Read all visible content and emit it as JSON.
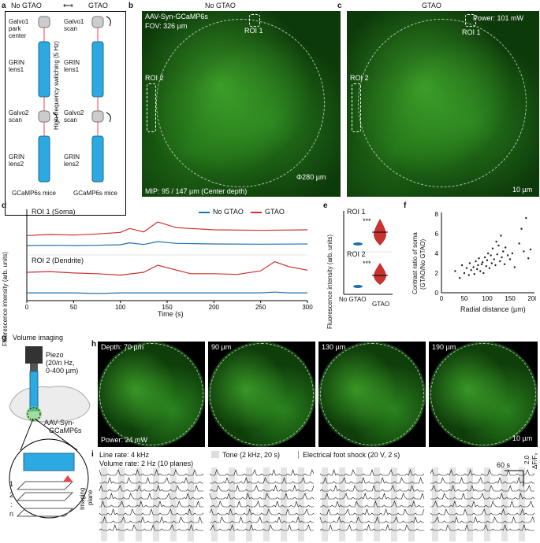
{
  "panels": {
    "a": {
      "label": "a",
      "header_left": "No GTAO",
      "header_right": "GTAO",
      "switch_text": "High frequency switching (5 Hz)",
      "left_col": [
        "Galvo1 park center",
        "GRIN lens1",
        "Galvo2 scan",
        "GRIN lens2",
        "GCaMP6s mice"
      ],
      "right_col": [
        "Galvo1 scan",
        "GRIN lens1",
        "Galvo2 scan",
        "GRIN lens2",
        "GCaMP6s mice"
      ]
    },
    "b": {
      "label": "b",
      "title": "No GTAO",
      "line1": "AAV-Syn-GCaMP6s",
      "line2": "FOV: 326 µm",
      "roi1": "ROI 1",
      "roi2": "ROI 2",
      "diameter": "Φ280 µm",
      "mip": "MIP: 95 / 147 µm (Center depth)"
    },
    "c": {
      "label": "c",
      "title": "GTAO",
      "power": "Power: 101 mW",
      "roi1": "ROI 1",
      "roi2": "ROI 2",
      "scale": "10 µm"
    },
    "d": {
      "label": "d",
      "legend_no": "No GTAO",
      "legend_gtao": "GTAO",
      "roi1_title": "ROI 1 (Soma)",
      "roi2_title": "ROI 2 (Dendrite)",
      "ylabel": "Fluorescence intensity (arb. units)",
      "xlabel": "Time (s)",
      "xticks": [
        "0",
        "50",
        "100",
        "150",
        "200",
        "250",
        "300"
      ],
      "yticks_top": [
        "150",
        "100",
        "50"
      ],
      "yticks_bottom": [
        "60",
        "40",
        "20",
        "0"
      ],
      "colors": {
        "no_gtao": "#1f6fae",
        "gtao": "#c8322f"
      }
    },
    "e": {
      "label": "e",
      "roi1": "ROI 1",
      "roi2": "ROI 2",
      "sig": "***",
      "ylabel": "Fluorescence intensity (arb. units)",
      "xticks": [
        "No GTAO",
        "GTAO"
      ],
      "yticks_top": [
        "100",
        "50",
        "0"
      ],
      "yticks_bottom": [
        "60",
        "40",
        "20",
        "0"
      ]
    },
    "f": {
      "label": "f",
      "ylabel_1": "Contrast ratio of soma",
      "ylabel_2": "(GTAO/No GTAO)",
      "xlabel": "Radial distance (µm)",
      "xticks": [
        "0",
        "50",
        "100",
        "150",
        "200"
      ],
      "yticks": [
        "0",
        "2",
        "4",
        "6",
        "8"
      ]
    },
    "g": {
      "label": "g",
      "title": "Volume imaging",
      "piezo": [
        "Piezo",
        "(20/n Hz,",
        "0-400 µm)"
      ],
      "virus": [
        "AAV-Syn-",
        "GCaMP6s"
      ],
      "planes": [
        "1",
        "2",
        ":",
        "n"
      ],
      "plane_label": [
        "Imaging",
        "plane"
      ]
    },
    "h": {
      "label": "h",
      "planes": [
        "Depth: 70 µm",
        "90 µm",
        "130 µm",
        "190 µm"
      ],
      "power": "Power: 24 mW",
      "scale": "10 µm"
    },
    "i": {
      "label": "i",
      "line_rate": "Line rate: 4 kHz",
      "volume_rate": "Volume rate: 2 Hz (10 planes)",
      "tone": "Tone (2 kHz, 20 s)",
      "shock": "Electrical foot shock (20 V, 2 s)",
      "time_scale": "60 s",
      "df_scale": "2.0",
      "df_label": "ΔF/F₀"
    }
  },
  "chart_data": [
    {
      "type": "line",
      "title": "ROI 1 (Soma)",
      "xlabel": "Time (s)",
      "ylabel": "Fluorescence intensity (arb. units)",
      "xlim": [
        0,
        300
      ],
      "ylim": [
        0,
        150
      ],
      "x": [
        0,
        25,
        50,
        75,
        100,
        110,
        125,
        140,
        160,
        200,
        250,
        300
      ],
      "series": [
        {
          "name": "No GTAO",
          "values": [
            30,
            31,
            30,
            31,
            33,
            40,
            34,
            45,
            38,
            36,
            35,
            36
          ]
        },
        {
          "name": "GTAO",
          "values": [
            68,
            72,
            70,
            74,
            80,
            95,
            82,
            120,
            98,
            90,
            88,
            90
          ]
        }
      ]
    },
    {
      "type": "line",
      "title": "ROI 2 (Dendrite)",
      "xlabel": "Time (s)",
      "ylabel": "Fluorescence intensity (arb. units)",
      "xlim": [
        0,
        300
      ],
      "ylim": [
        0,
        60
      ],
      "x": [
        0,
        25,
        50,
        75,
        100,
        125,
        140,
        175,
        200,
        225,
        250,
        265,
        280,
        300
      ],
      "series": [
        {
          "name": "No GTAO",
          "values": [
            11,
            11,
            11,
            10,
            11,
            11,
            11,
            11,
            11,
            11,
            11,
            12,
            11,
            11
          ]
        },
        {
          "name": "GTAO",
          "values": [
            40,
            41,
            39,
            38,
            36,
            40,
            50,
            38,
            38,
            37,
            42,
            55,
            48,
            43
          ]
        }
      ]
    },
    {
      "type": "scatter",
      "xlabel": "Radial distance (µm)",
      "ylabel": "Contrast ratio of soma (GTAO/No GTAO)",
      "xlim": [
        0,
        200
      ],
      "ylim": [
        0,
        8
      ],
      "x": [
        30,
        40,
        45,
        50,
        55,
        60,
        62,
        65,
        70,
        72,
        75,
        78,
        80,
        82,
        85,
        88,
        90,
        92,
        95,
        98,
        100,
        102,
        105,
        108,
        110,
        112,
        115,
        118,
        120,
        122,
        125,
        128,
        130,
        132,
        135,
        138,
        140,
        145,
        150,
        155,
        160,
        170,
        175,
        180,
        185,
        190,
        195
      ],
      "y": [
        2.2,
        1.5,
        2.8,
        2.0,
        2.5,
        1.8,
        3.0,
        2.3,
        2.6,
        1.9,
        3.2,
        2.4,
        2.8,
        3.5,
        2.2,
        2.9,
        3.1,
        2.0,
        3.6,
        2.7,
        3.3,
        4.0,
        2.5,
        3.8,
        3.0,
        4.5,
        3.4,
        2.8,
        5.2,
        3.9,
        4.8,
        3.2,
        5.8,
        3.6,
        4.2,
        2.9,
        4.6,
        3.8,
        3.4,
        4.0,
        2.6,
        5.0,
        6.5,
        4.2,
        7.6,
        3.5,
        4.4
      ]
    }
  ]
}
